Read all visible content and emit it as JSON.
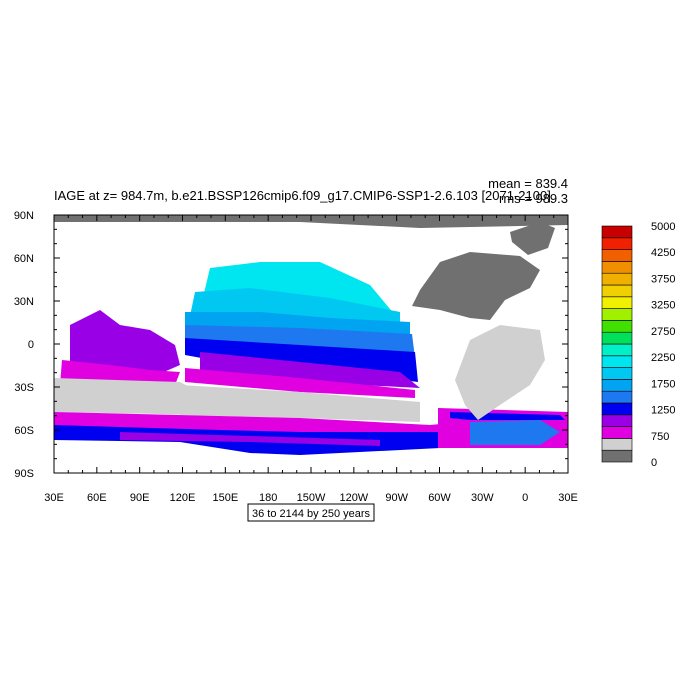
{
  "chart_data": {
    "type": "heatmap",
    "title": "IAGE at z= 984.7m, b.e21.BSSP126cmip6.f09_g17.CMIP6-SSP1-2.6.103 [2071-2100]",
    "stats": {
      "mean": "mean = 839.4",
      "rms": "rms = 989.3"
    },
    "subtitle_box": "36 to 2144 by 250 years",
    "x_ticks": [
      "30E",
      "60E",
      "90E",
      "120E",
      "150E",
      "180",
      "150W",
      "120W",
      "90W",
      "60W",
      "30W",
      "0",
      "30E"
    ],
    "y_ticks": [
      "90N",
      "60N",
      "30N",
      "0",
      "30S",
      "60S",
      "90S"
    ],
    "xlim": [
      30,
      390
    ],
    "ylim": [
      -90,
      90
    ],
    "colorbar": {
      "colors": [
        "#707070",
        "#d0d0d0",
        "#e000e0",
        "#9a00e6",
        "#0000f0",
        "#1e78f0",
        "#00a4f0",
        "#00c8f0",
        "#00e6f0",
        "#00f0c8",
        "#00e05a",
        "#40e000",
        "#a0f000",
        "#f0f000",
        "#f0d000",
        "#f0b000",
        "#f09000",
        "#f06000",
        "#f02000",
        "#c80000"
      ],
      "labels": [
        "0",
        "750",
        "1250",
        "1750",
        "2250",
        "2750",
        "3250",
        "3750",
        "4250",
        "5000"
      ]
    },
    "colors": {
      "land": "#707070",
      "missing": "#ffffff"
    }
  }
}
